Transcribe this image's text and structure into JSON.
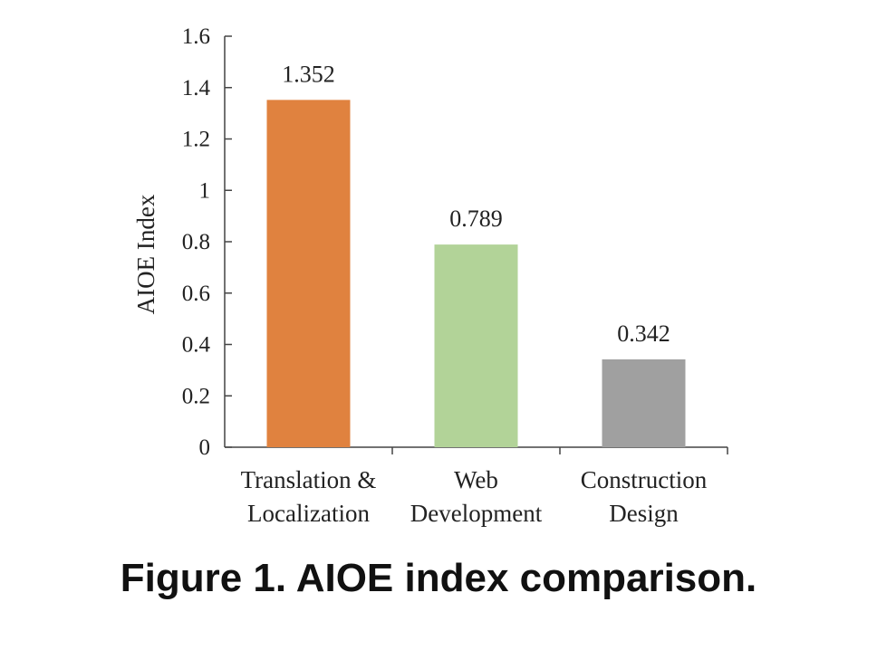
{
  "chart_data": {
    "type": "bar",
    "title": "",
    "xlabel": "",
    "ylabel": "AIOE Index",
    "ylim": [
      0,
      1.6
    ],
    "yticks": [
      "0",
      "0.2",
      "0.4",
      "0.6",
      "0.8",
      "1",
      "1.2",
      "1.4",
      "1.6"
    ],
    "categories": [
      [
        "Translation &",
        "Localization"
      ],
      [
        "Web",
        "Development"
      ],
      [
        "Construction",
        "Design"
      ]
    ],
    "values": [
      1.352,
      0.789,
      0.342
    ],
    "value_labels": [
      "1.352",
      "0.789",
      "0.342"
    ],
    "colors": [
      "#E0823F",
      "#B2D398",
      "#A0A0A0"
    ],
    "grid": false,
    "legend": "none"
  },
  "caption": "Figure 1. AIOE index comparison."
}
